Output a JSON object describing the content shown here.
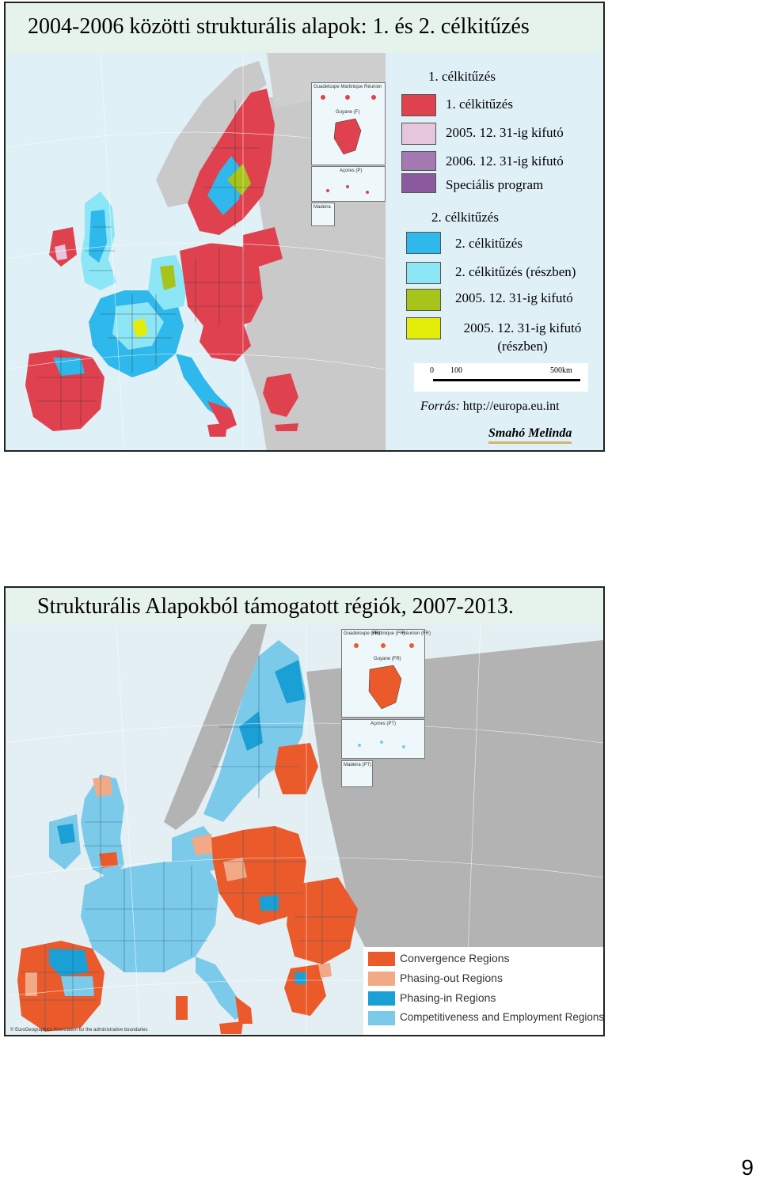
{
  "slide1": {
    "title": "2004-2006 közötti strukturális alapok: 1. és 2. célkitűzés",
    "legend": {
      "group1_heading": "1. célkitűzés",
      "group1_items": [
        {
          "label": "1. célkitűzés",
          "color": "#e0414f"
        },
        {
          "label": "2005. 12. 31-ig kifutó",
          "color": "#e6c6dd"
        },
        {
          "label": "2006. 12. 31-ig kifutó",
          "color": "#a37bb2"
        },
        {
          "label": "Speciális program",
          "color": "#8a5a9c"
        }
      ],
      "group2_heading": "2. célkitűzés",
      "group2_items": [
        {
          "label": "2. célkitűzés",
          "color": "#2fb8ec"
        },
        {
          "label": "2. célkitűzés (részben)",
          "color": "#8ce6f5"
        },
        {
          "label": "2005. 12. 31-ig kifutó",
          "color": "#a8c41a"
        },
        {
          "label": "2005. 12. 31-ig kifutó (részben)",
          "color": "#e4ec0a"
        }
      ],
      "scale_labels": [
        "0",
        "100",
        "500km"
      ],
      "source_label": "Forrás:",
      "source_url": "http://europa.eu.int",
      "author": "Smahó Melinda"
    },
    "insets": [
      "Guadeloupe",
      "Martinique",
      "Réunion",
      "Guyane (F)",
      "Açores (P)",
      "Madeira"
    ]
  },
  "slide2": {
    "title": "Strukturális Alapokból támogatott régiók, 2007-2013.",
    "legend": [
      {
        "label": "Convergence Regions",
        "color": "#ea5a2a"
      },
      {
        "label": "Phasing-out Regions",
        "color": "#f2a985"
      },
      {
        "label": "Phasing-in Regions",
        "color": "#1aa0d4"
      },
      {
        "label": "Competitiveness and Employment Regions",
        "color": "#7ccaea"
      }
    ],
    "insets": [
      "Guadeloupe (FR)",
      "Martinique (FR)",
      "Réunion (FR)",
      "Guyane (FR)",
      "Açores (PT)",
      "Madeira (PT)"
    ],
    "copyright": "© EuroGeographics Association for the administrative boundaries"
  },
  "page_number": "9"
}
